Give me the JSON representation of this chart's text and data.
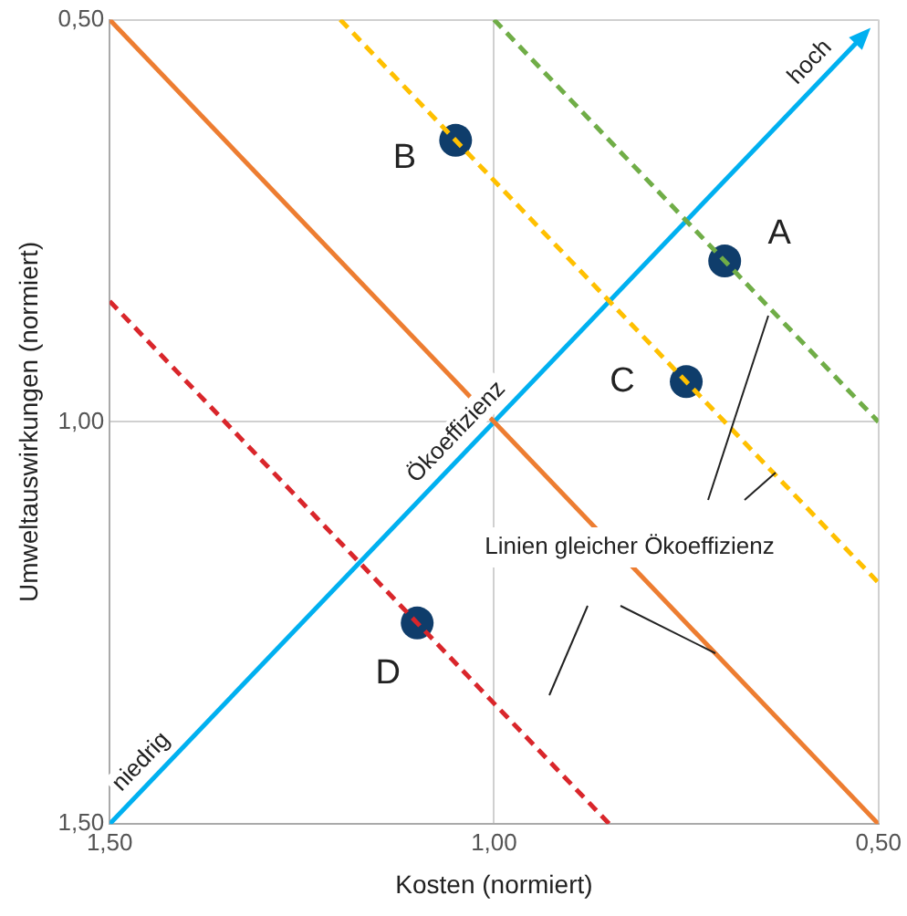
{
  "chart_data": {
    "type": "scatter",
    "xlabel": "Kosten (normiert)",
    "ylabel": "Umweltauswirkungen (normiert)",
    "xlim": [
      1.5,
      0.5
    ],
    "ylim": [
      1.5,
      0.5
    ],
    "xticks": [
      {
        "value": 1.5,
        "label": "1,50"
      },
      {
        "value": 1.0,
        "label": "1,00"
      },
      {
        "value": 0.5,
        "label": "0,50"
      }
    ],
    "yticks": [
      {
        "value": 0.5,
        "label": "0,50"
      },
      {
        "value": 1.0,
        "label": "1,00"
      },
      {
        "value": 1.5,
        "label": "1,50"
      }
    ],
    "grid": true,
    "legend": false,
    "series": [
      {
        "type": "line",
        "color": "#ed7d31",
        "line_style": "solid",
        "x": [
          1.5,
          0.5
        ],
        "values": [
          0.5,
          1.5
        ]
      },
      {
        "type": "line",
        "color": "#d9262b",
        "line_style": "dashed",
        "x": [
          1.5,
          0.85
        ],
        "values": [
          0.85,
          1.5
        ]
      },
      {
        "type": "line",
        "color": "#ffc000",
        "line_style": "dashed",
        "x": [
          1.2,
          0.5
        ],
        "values": [
          0.5,
          1.2
        ]
      },
      {
        "type": "line",
        "color": "#70ad47",
        "line_style": "dashed",
        "x": [
          1.0,
          0.5
        ],
        "values": [
          0.5,
          1.0
        ]
      },
      {
        "type": "line",
        "color": "#00b0f0",
        "line_style": "solid",
        "x": [
          1.5,
          0.52
        ],
        "values": [
          1.5,
          0.52
        ]
      },
      {
        "type": "scatter",
        "color": "#0f3d6b",
        "marker": "circle",
        "x": [
          0.7,
          1.05,
          0.75,
          1.1
        ],
        "values": [
          0.8,
          0.65,
          0.95,
          1.25
        ]
      }
    ],
    "annotations": [
      {
        "text": "A",
        "x": 0.7,
        "y": 0.8
      },
      {
        "text": "B",
        "x": 1.05,
        "y": 0.65
      },
      {
        "text": "C",
        "x": 0.75,
        "y": 0.95
      },
      {
        "text": "D",
        "x": 1.1,
        "y": 1.25
      },
      {
        "text": "Ökoeffizienz",
        "x": 1.03,
        "y": 1.03
      },
      {
        "text": "hoch",
        "x": 0.57,
        "y": 0.57
      },
      {
        "text": "niedrig",
        "x": 1.44,
        "y": 1.44
      },
      "Linien gleicher Ökoeffizienz"
    ]
  }
}
